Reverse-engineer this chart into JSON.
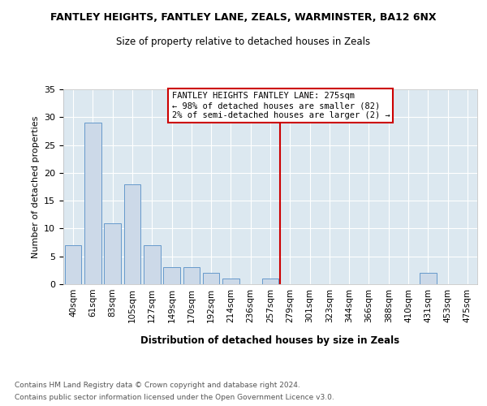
{
  "title": "FANTLEY HEIGHTS, FANTLEY LANE, ZEALS, WARMINSTER, BA12 6NX",
  "subtitle": "Size of property relative to detached houses in Zeals",
  "xlabel": "Distribution of detached houses by size in Zeals",
  "ylabel": "Number of detached properties",
  "categories": [
    "40sqm",
    "61sqm",
    "83sqm",
    "105sqm",
    "127sqm",
    "149sqm",
    "170sqm",
    "192sqm",
    "214sqm",
    "236sqm",
    "257sqm",
    "279sqm",
    "301sqm",
    "323sqm",
    "344sqm",
    "366sqm",
    "388sqm",
    "410sqm",
    "431sqm",
    "453sqm",
    "475sqm"
  ],
  "values": [
    7,
    29,
    11,
    18,
    7,
    3,
    3,
    2,
    1,
    0,
    1,
    0,
    0,
    0,
    0,
    0,
    0,
    0,
    2,
    0,
    0
  ],
  "bar_color": "#ccd9e8",
  "bar_edge_color": "#6699cc",
  "red_line_index": 11,
  "red_line_color": "#cc0000",
  "ylim": [
    0,
    35
  ],
  "yticks": [
    0,
    5,
    10,
    15,
    20,
    25,
    30,
    35
  ],
  "annotation_line1": "FANTLEY HEIGHTS FANTLEY LANE: 275sqm",
  "annotation_line2": "← 98% of detached houses are smaller (82)",
  "annotation_line3": "2% of semi-detached houses are larger (2) →",
  "annotation_border_color": "#cc0000",
  "footer1": "Contains HM Land Registry data © Crown copyright and database right 2024.",
  "footer2": "Contains public sector information licensed under the Open Government Licence v3.0.",
  "plot_bg_color": "#dce8f0"
}
